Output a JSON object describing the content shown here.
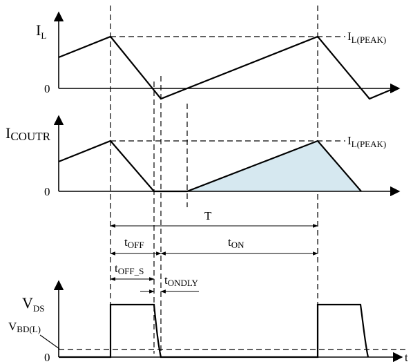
{
  "il_plot": {
    "y_main": "I",
    "y_sub": "L",
    "zero": "0",
    "peak_main": "I",
    "peak_sub": "L(PEAK)"
  },
  "icoutr_plot": {
    "y_main": "I",
    "y_sub": "COUTR",
    "zero": "0",
    "peak_main": "I",
    "peak_sub": "L(PEAK)",
    "shade_color": "#d6e8f0"
  },
  "timing": {
    "period": "T",
    "toff_main": "t",
    "toff_sub": "OFF",
    "ton_main": "t",
    "ton_sub": "ON",
    "toffs_main": "t",
    "toffs_sub": "OFF_S",
    "tondly_main": "t",
    "tondly_sub": "ONDLY"
  },
  "vds_plot": {
    "y_main": "V",
    "y_sub": "DS",
    "vbd_main": "V",
    "vbd_sub": "BD(L)",
    "zero": "0",
    "x_label": "t"
  }
}
